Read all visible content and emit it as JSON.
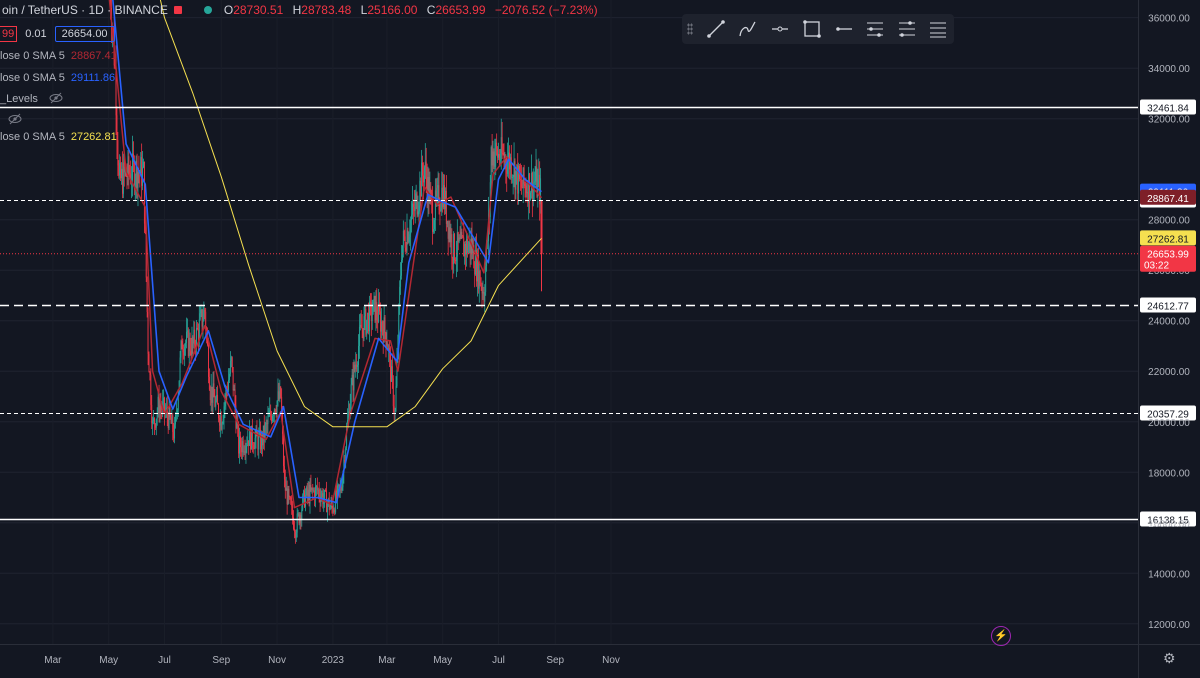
{
  "header": {
    "symbol": "oin / TetherUS · 1D · BINANCE",
    "ohlc": [
      {
        "key": "O",
        "value": "28730.51"
      },
      {
        "key": "H",
        "value": "28783.48"
      },
      {
        "key": "L",
        "value": "25166.00"
      },
      {
        "key": "C",
        "value": "26653.99"
      }
    ],
    "change": "−2076.52 (−7.23%)"
  },
  "order_panel": {
    "sell": "99",
    "spread": "0.01",
    "buy": "26654.00"
  },
  "indicators": [
    {
      "label": "lose 0 SMA 5",
      "value": "28867.41",
      "color": "#b22833"
    },
    {
      "label": "lose 0 SMA 5",
      "value": "29111.86",
      "color": "#2962ff"
    },
    {
      "label": "_Levels",
      "value": "",
      "color": "#787b86"
    },
    {
      "label": "lose 0 SMA 5",
      "value": "27262.81",
      "color": "#f5e050"
    }
  ],
  "toolbar_icons": [
    "trend-line-icon",
    "brush-icon",
    "horizontal-ray-icon",
    "rectangle-icon",
    "horizontal-line-icon",
    "fib-levels-icon",
    "parallel-channel-icon",
    "menu-lines-icon"
  ],
  "chart_data": {
    "type": "candlestick",
    "symbol": "oin / TetherUS",
    "interval": "1D",
    "exchange": "BINANCE",
    "y_ticks": [
      12000,
      14000,
      16000,
      18000,
      20000,
      22000,
      24000,
      26000,
      28000,
      32000,
      34000,
      36000
    ],
    "y_tick_labels": [
      "12000.00",
      "14000.00",
      "16000.00",
      "18000.00",
      "20000.00",
      "22000.00",
      "24000.00",
      "26000.00",
      "28000.00",
      "32000.00",
      "34000.00",
      "36000.00"
    ],
    "ylim": [
      11200,
      36700
    ],
    "x_labels": [
      "Mar",
      "May",
      "Jul",
      "Sep",
      "Nov",
      "2023",
      "Mar",
      "May",
      "Jul",
      "Sep",
      "Nov"
    ],
    "price_path": [
      [
        "2022-05-01",
        38000
      ],
      [
        "2022-05-08",
        34000
      ],
      [
        "2022-05-12",
        29500
      ],
      [
        "2022-05-20",
        29800
      ],
      [
        "2022-06-01",
        30000
      ],
      [
        "2022-06-08",
        29800
      ],
      [
        "2022-06-13",
        23000
      ],
      [
        "2022-06-18",
        19800
      ],
      [
        "2022-06-25",
        20700
      ],
      [
        "2022-07-05",
        20200
      ],
      [
        "2022-07-12",
        19500
      ],
      [
        "2022-07-20",
        23200
      ],
      [
        "2022-08-01",
        23000
      ],
      [
        "2022-08-14",
        24400
      ],
      [
        "2022-08-20",
        21300
      ],
      [
        "2022-09-01",
        20100
      ],
      [
        "2022-09-12",
        22300
      ],
      [
        "2022-09-20",
        19000
      ],
      [
        "2022-10-01",
        19400
      ],
      [
        "2022-10-15",
        19200
      ],
      [
        "2022-10-28",
        20600
      ],
      [
        "2022-11-05",
        21000
      ],
      [
        "2022-11-09",
        17500
      ],
      [
        "2022-11-21",
        15800
      ],
      [
        "2022-12-01",
        17000
      ],
      [
        "2022-12-15",
        17300
      ],
      [
        "2022-12-31",
        16550
      ],
      [
        "2023-01-10",
        17400
      ],
      [
        "2023-01-20",
        21000
      ],
      [
        "2023-02-01",
        23700
      ],
      [
        "2023-02-16",
        24500
      ],
      [
        "2023-03-01",
        23400
      ],
      [
        "2023-03-10",
        20300
      ],
      [
        "2023-03-17",
        26900
      ],
      [
        "2023-04-01",
        28500
      ],
      [
        "2023-04-11",
        30100
      ],
      [
        "2023-04-20",
        28200
      ],
      [
        "2023-05-01",
        29200
      ],
      [
        "2023-05-12",
        26800
      ],
      [
        "2023-06-01",
        27000
      ],
      [
        "2023-06-15",
        25100
      ],
      [
        "2023-06-21",
        28300
      ],
      [
        "2023-06-23",
        30700
      ],
      [
        "2023-07-05",
        30500
      ],
      [
        "2023-07-15",
        30300
      ],
      [
        "2023-07-25",
        29300
      ],
      [
        "2023-08-10",
        29500
      ],
      [
        "2023-08-16",
        29100
      ],
      [
        "2023-08-17",
        26654
      ]
    ],
    "last_candle": {
      "date": "2023-08-17",
      "open": 28730.51,
      "high": 28783.48,
      "low": 25166.0,
      "close": 26653.99
    },
    "sma_fast_path": [
      [
        "2022-05-01",
        37000
      ],
      [
        "2022-05-20",
        29900
      ],
      [
        "2022-06-10",
        28500
      ],
      [
        "2022-06-18",
        22000
      ],
      [
        "2022-07-01",
        20300
      ],
      [
        "2022-07-20",
        21500
      ],
      [
        "2022-08-14",
        23800
      ],
      [
        "2022-09-01",
        21200
      ],
      [
        "2022-09-20",
        19900
      ],
      [
        "2022-10-20",
        19300
      ],
      [
        "2022-11-05",
        20400
      ],
      [
        "2022-11-20",
        16600
      ],
      [
        "2022-12-15",
        17000
      ],
      [
        "2022-12-31",
        16700
      ],
      [
        "2023-01-20",
        20300
      ],
      [
        "2023-02-16",
        23300
      ],
      [
        "2023-03-05",
        23200
      ],
      [
        "2023-03-13",
        22000
      ],
      [
        "2023-04-11",
        29300
      ],
      [
        "2023-04-25",
        28600
      ],
      [
        "2023-05-10",
        28900
      ],
      [
        "2023-06-15",
        25900
      ],
      [
        "2023-06-25",
        29800
      ],
      [
        "2023-07-10",
        30500
      ],
      [
        "2023-07-25",
        29800
      ],
      [
        "2023-08-17",
        28867
      ]
    ],
    "sma_slow_path": [
      [
        "2022-05-01",
        38500
      ],
      [
        "2022-05-20",
        31000
      ],
      [
        "2022-06-10",
        29400
      ],
      [
        "2022-06-25",
        22000
      ],
      [
        "2022-07-10",
        20500
      ],
      [
        "2022-07-25",
        21800
      ],
      [
        "2022-08-18",
        23600
      ],
      [
        "2022-09-05",
        21400
      ],
      [
        "2022-09-25",
        19900
      ],
      [
        "2022-10-25",
        19400
      ],
      [
        "2022-11-08",
        20600
      ],
      [
        "2022-11-25",
        17000
      ],
      [
        "2022-12-15",
        17000
      ],
      [
        "2023-01-05",
        16800
      ],
      [
        "2023-01-25",
        20000
      ],
      [
        "2023-02-20",
        23300
      ],
      [
        "2023-03-12",
        22400
      ],
      [
        "2023-03-25",
        26300
      ],
      [
        "2023-04-15",
        29000
      ],
      [
        "2023-05-01",
        28700
      ],
      [
        "2023-05-15",
        28500
      ],
      [
        "2023-06-20",
        26300
      ],
      [
        "2023-07-01",
        29600
      ],
      [
        "2023-07-12",
        30400
      ],
      [
        "2023-07-30",
        29600
      ],
      [
        "2023-08-17",
        29112
      ]
    ],
    "sma_long_path": [
      [
        "2022-06-15",
        38500
      ],
      [
        "2022-07-01",
        36000
      ],
      [
        "2022-08-01",
        33000
      ],
      [
        "2022-09-01",
        29700
      ],
      [
        "2022-10-01",
        26200
      ],
      [
        "2022-11-01",
        22800
      ],
      [
        "2022-12-01",
        20600
      ],
      [
        "2023-01-01",
        19800
      ],
      [
        "2023-02-01",
        19800
      ],
      [
        "2023-03-01",
        19800
      ],
      [
        "2023-04-01",
        20600
      ],
      [
        "2023-05-01",
        22100
      ],
      [
        "2023-06-01",
        23200
      ],
      [
        "2023-07-01",
        25400
      ],
      [
        "2023-08-17",
        27263
      ]
    ],
    "levels": [
      {
        "value": 32461.84,
        "label": "32461.84",
        "style": "solid"
      },
      {
        "value": 28765.65,
        "label": "28765.65",
        "style": "dashed"
      },
      {
        "value": 24612.77,
        "label": "24612.77",
        "style": "long-dash"
      },
      {
        "value": 20357.29,
        "label": "20357.29",
        "style": "dashed"
      },
      {
        "value": 16138.15,
        "label": "16138.15",
        "style": "solid"
      }
    ],
    "price_badges": [
      {
        "value": 29111.86,
        "label": "29111.86",
        "bg": "#2962ff",
        "fg": "#ffffff"
      },
      {
        "value": 28867.41,
        "label": "28867.41",
        "bg": "#7e1f28",
        "fg": "#ffffff"
      },
      {
        "value": 27262.81,
        "label": "27262.81",
        "bg": "#f5e050",
        "fg": "#131722"
      },
      {
        "value": 26653.99,
        "label": "26653.99",
        "sub": "03:22",
        "bg": "#f23645",
        "fg": "#ffffff"
      }
    ],
    "colors": {
      "up": "#26a69a",
      "down": "#f23645",
      "sma_fast": "#b22833",
      "sma_slow": "#2962ff",
      "sma_long": "#f5e050"
    }
  }
}
